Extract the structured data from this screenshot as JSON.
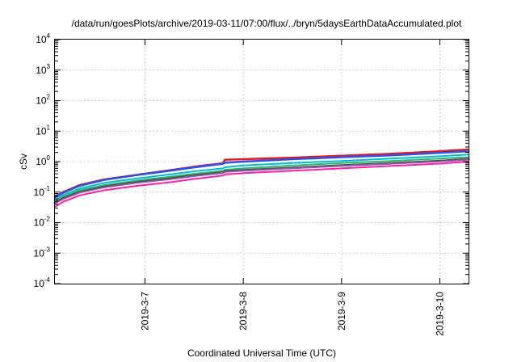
{
  "chart_data": {
    "type": "line",
    "title": "/data/run/goesPlots/archive/2019-03-11/07:00/flux/../bryn/5daysEarthDataAccumulated.plot",
    "xlabel": "Coordinated Universal Time (UTC)",
    "ylabel": "cSv",
    "yscale": "log",
    "ylim": [
      0.0001,
      10000
    ],
    "xlim": [
      "2019-03-06T02:00",
      "2019-03-10T07:00"
    ],
    "grid": true,
    "legend": "none",
    "y_ticks": [
      {
        "base": "10",
        "exp": "-4"
      },
      {
        "base": "10",
        "exp": "-3"
      },
      {
        "base": "10",
        "exp": "-2"
      },
      {
        "base": "10",
        "exp": "-1"
      },
      {
        "base": "10",
        "exp": "0"
      },
      {
        "base": "10",
        "exp": "1"
      },
      {
        "base": "10",
        "exp": "2"
      },
      {
        "base": "10",
        "exp": "3"
      },
      {
        "base": "10",
        "exp": "4"
      }
    ],
    "x_ticks": [
      "2019-3-7",
      "2019-3-8",
      "2019-3-9",
      "2019-3-10"
    ],
    "x": [
      "2019-03-06T02:00",
      "2019-03-06T04:00",
      "2019-03-06T08:00",
      "2019-03-06T14:00",
      "2019-03-06T22:00",
      "2019-03-07T06:00",
      "2019-03-07T12:00",
      "2019-03-07T19:00",
      "2019-03-07T19:30",
      "2019-03-08T00:00",
      "2019-03-08T12:00",
      "2019-03-09T00:00",
      "2019-03-09T12:00",
      "2019-03-10T00:00",
      "2019-03-10T07:00"
    ],
    "series": [
      {
        "color": "#e41a1c",
        "width": 2.5,
        "values": [
          0.07,
          0.1,
          0.17,
          0.26,
          0.37,
          0.52,
          0.68,
          0.88,
          1.15,
          1.2,
          1.35,
          1.55,
          1.8,
          2.2,
          2.5
        ]
      },
      {
        "color": "#2a52e8",
        "width": 2.5,
        "values": [
          0.068,
          0.095,
          0.16,
          0.25,
          0.36,
          0.5,
          0.65,
          0.85,
          0.92,
          1.0,
          1.2,
          1.4,
          1.6,
          1.95,
          2.2
        ]
      },
      {
        "color": "#00bcd4",
        "width": 2,
        "values": [
          0.055,
          0.08,
          0.13,
          0.2,
          0.28,
          0.38,
          0.48,
          0.6,
          0.65,
          0.75,
          0.9,
          1.05,
          1.25,
          1.5,
          1.7
        ]
      },
      {
        "color": "#2eb872",
        "width": 2,
        "values": [
          0.05,
          0.07,
          0.115,
          0.17,
          0.24,
          0.32,
          0.4,
          0.5,
          0.54,
          0.6,
          0.75,
          0.9,
          1.05,
          1.25,
          1.4
        ]
      },
      {
        "color": "#555555",
        "width": 3,
        "values": [
          0.045,
          0.062,
          0.1,
          0.15,
          0.21,
          0.28,
          0.35,
          0.44,
          0.48,
          0.52,
          0.62,
          0.75,
          0.88,
          1.05,
          1.2
        ]
      },
      {
        "color": "#9b59b6",
        "width": 1.5,
        "values": [
          0.042,
          0.058,
          0.095,
          0.14,
          0.2,
          0.26,
          0.33,
          0.42,
          0.45,
          0.5,
          0.6,
          0.72,
          0.85,
          1.0,
          1.15
        ]
      },
      {
        "color": "#ff1ea8",
        "width": 2,
        "values": [
          0.033,
          0.048,
          0.078,
          0.115,
          0.16,
          0.21,
          0.27,
          0.35,
          0.38,
          0.42,
          0.5,
          0.6,
          0.72,
          0.86,
          1.0
        ]
      }
    ]
  }
}
